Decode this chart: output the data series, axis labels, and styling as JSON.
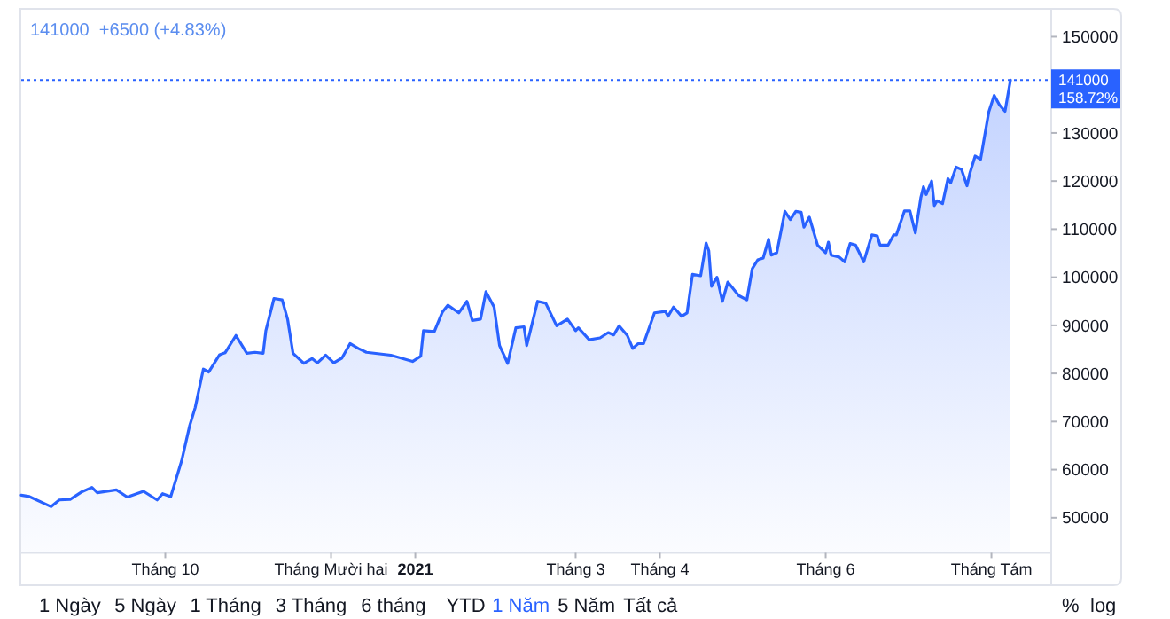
{
  "chart_data": {
    "type": "area",
    "annotations": [
      "141000  +6500 (+4.83%)",
      "1 Ngày",
      "5 Ngày",
      "1 Tháng",
      "3 Tháng",
      "6 tháng",
      "YTD",
      "1 Năm",
      "5 Năm",
      "Tất cả",
      "%",
      "log",
      "158.72%"
    ],
    "x": [
      "2020-08-09",
      "2020-08-12",
      "2020-08-20",
      "2020-08-23",
      "2020-08-27",
      "2020-08-31",
      "2020-09-04",
      "2020-09-06",
      "2020-09-13",
      "2020-09-17",
      "2020-09-23",
      "2020-09-28",
      "2020-09-30",
      "2020-10-03",
      "2020-10-07",
      "2020-10-10",
      "2020-10-12",
      "2020-10-15",
      "2020-10-17",
      "2020-10-21",
      "2020-10-23",
      "2020-10-27",
      "2020-10-31",
      "2020-11-03",
      "2020-11-06",
      "2020-11-07",
      "2020-11-10",
      "2020-11-13",
      "2020-11-15",
      "2020-11-17",
      "2020-11-21",
      "2020-11-24",
      "2020-11-26",
      "2020-11-29",
      "2020-12-02",
      "2020-12-05",
      "2020-12-08",
      "2020-12-11",
      "2020-12-14",
      "2020-12-23",
      "2020-12-31",
      "2021-01-03",
      "2021-01-04",
      "2021-01-08",
      "2021-01-11",
      "2021-01-13",
      "2021-01-17",
      "2021-01-20",
      "2021-01-22",
      "2021-01-25",
      "2021-01-27",
      "2021-01-30",
      "2021-02-01",
      "2021-02-04",
      "2021-02-07",
      "2021-02-10",
      "2021-02-11",
      "2021-02-15",
      "2021-02-18",
      "2021-02-22",
      "2021-02-26",
      "2021-03-01",
      "2021-03-02",
      "2021-03-06",
      "2021-03-10",
      "2021-03-13",
      "2021-03-15",
      "2021-03-17",
      "2021-03-20",
      "2021-03-22",
      "2021-03-24",
      "2021-03-26",
      "2021-03-30",
      "2021-04-03",
      "2021-04-04",
      "2021-04-06",
      "2021-04-09",
      "2021-04-11",
      "2021-04-13",
      "2021-04-16",
      "2021-04-18",
      "2021-04-19",
      "2021-04-20",
      "2021-04-22",
      "2021-04-24",
      "2021-04-26",
      "2021-04-30",
      "2021-05-03",
      "2021-05-05",
      "2021-05-07",
      "2021-05-09",
      "2021-05-11",
      "2021-05-12",
      "2021-05-14",
      "2021-05-17",
      "2021-05-19",
      "2021-05-21",
      "2021-05-23",
      "2021-05-24",
      "2021-05-26",
      "2021-05-29",
      "2021-06-01",
      "2021-06-02",
      "2021-06-03",
      "2021-06-06",
      "2021-06-08",
      "2021-06-10",
      "2021-06-12",
      "2021-06-15",
      "2021-06-18",
      "2021-06-20",
      "2021-06-21",
      "2021-06-24",
      "2021-06-26",
      "2021-06-27",
      "2021-06-30",
      "2021-07-02",
      "2021-07-04",
      "2021-07-06",
      "2021-07-07",
      "2021-07-08",
      "2021-07-10",
      "2021-07-11",
      "2021-07-12",
      "2021-07-14",
      "2021-07-16",
      "2021-07-17",
      "2021-07-19",
      "2021-07-21",
      "2021-07-23",
      "2021-07-24",
      "2021-07-26",
      "2021-07-28",
      "2021-07-31",
      "2021-08-02",
      "2021-08-04",
      "2021-08-06",
      "2021-08-08"
    ],
    "series": [
      {
        "color": "#2962ff",
        "values": [
          54700,
          54400,
          52300,
          53700,
          53800,
          55300,
          56300,
          55200,
          55800,
          54300,
          55500,
          53700,
          55000,
          54400,
          61800,
          69200,
          72900,
          80900,
          80300,
          83900,
          84300,
          87900,
          84200,
          84400,
          84200,
          88900,
          95600,
          95300,
          91300,
          84200,
          82100,
          83100,
          82200,
          83800,
          82200,
          83200,
          86200,
          85200,
          84400,
          83800,
          82500,
          83600,
          88900,
          88700,
          92800,
          94200,
          92600,
          95000,
          91000,
          91300,
          97000,
          93800,
          85800,
          82100,
          89500,
          89700,
          85800,
          95000,
          94600,
          89900,
          91300,
          88900,
          89500,
          87000,
          87400,
          88500,
          88000,
          89900,
          87900,
          85200,
          86200,
          86200,
          92600,
          92900,
          91900,
          93800,
          91900,
          92600,
          100600,
          100300,
          107100,
          105500,
          98100,
          100000,
          95000,
          99000,
          96200,
          95300,
          101800,
          103600,
          104000,
          107900,
          104600,
          105100,
          113700,
          112000,
          113700,
          113500,
          110400,
          112500,
          106700,
          105100,
          107300,
          104600,
          104200,
          103200,
          107000,
          106700,
          103200,
          108800,
          108600,
          106700,
          106700,
          108800,
          108800,
          113800,
          113800,
          109200,
          116500,
          118800,
          117200,
          120000,
          114900,
          115900,
          115300,
          120500,
          119600,
          122900,
          122400,
          119000,
          121500,
          125200,
          124500,
          134300,
          137800,
          135800,
          134500,
          141000
        ]
      }
    ],
    "xlim": [
      "2020-08-09",
      "2021-08-23"
    ],
    "xticks": [
      {
        "value": "2020-10-01",
        "label": "Tháng 10"
      },
      {
        "value": "2020-12-01",
        "label": "Tháng Mười hai"
      },
      {
        "value": "2021-01-01",
        "label": "2021"
      },
      {
        "value": "2021-03-01",
        "label": "Tháng 3"
      },
      {
        "value": "2021-04-01",
        "label": "Tháng 4"
      },
      {
        "value": "2021-06-01",
        "label": "Tháng 6"
      },
      {
        "value": "2021-08-01",
        "label": "Tháng Tám"
      }
    ],
    "ylim": [
      42700,
      155800
    ],
    "yticks": [
      50000,
      60000,
      70000,
      80000,
      90000,
      100000,
      110000,
      120000,
      130000,
      150000
    ],
    "ref_lines": [
      {
        "axis": "y",
        "value": 141000,
        "label": "141000",
        "color": "#2962ff",
        "line_style": "dotted"
      }
    ]
  }
}
